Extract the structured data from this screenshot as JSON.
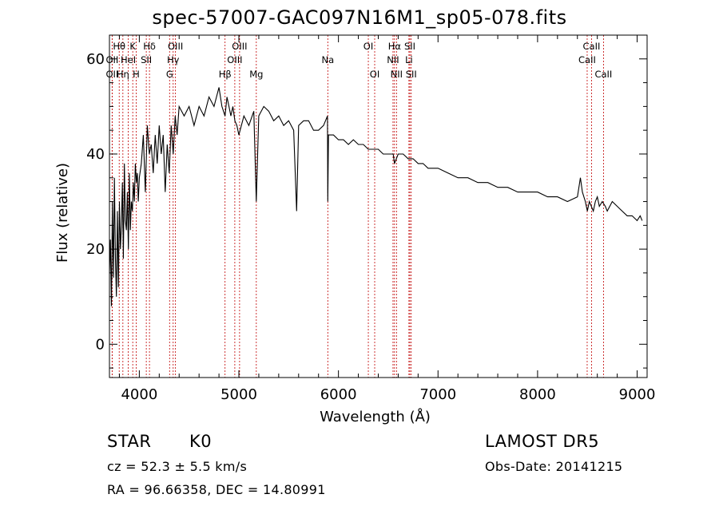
{
  "chart_data": {
    "type": "line",
    "title": "spec-57007-GAC097N16M1_sp05-078.fits",
    "xlabel": "Wavelength (Å)",
    "ylabel": "Flux (relative)",
    "xlim": [
      3700,
      9100
    ],
    "ylim": [
      -7,
      65
    ],
    "xticks": [
      4000,
      5000,
      6000,
      7000,
      8000,
      9000
    ],
    "yticks": [
      0,
      20,
      40,
      60
    ],
    "grid": false,
    "series": [
      {
        "x": [
          3700,
          3710,
          3720,
          3730,
          3740,
          3750,
          3760,
          3770,
          3780,
          3790,
          3800,
          3810,
          3820,
          3830,
          3840,
          3850,
          3860,
          3870,
          3880,
          3890,
          3900,
          3910,
          3920,
          3930,
          3940,
          3950,
          3960,
          3970,
          3980,
          3990,
          4000,
          4020,
          4040,
          4060,
          4080,
          4100,
          4120,
          4140,
          4160,
          4180,
          4200,
          4220,
          4240,
          4260,
          4280,
          4300,
          4320,
          4340,
          4360,
          4380,
          4400,
          4450,
          4500,
          4550,
          4600,
          4650,
          4700,
          4750,
          4800,
          4830,
          4861,
          4880,
          4900,
          4920,
          4940,
          4960,
          4980,
          5000,
          5050,
          5100,
          5150,
          5175,
          5183,
          5200,
          5250,
          5300,
          5350,
          5400,
          5450,
          5500,
          5550,
          5580,
          5600,
          5650,
          5700,
          5750,
          5800,
          5850,
          5890,
          5893,
          5900,
          5950,
          6000,
          6050,
          6100,
          6150,
          6200,
          6250,
          6300,
          6350,
          6400,
          6450,
          6500,
          6550,
          6563,
          6600,
          6650,
          6700,
          6750,
          6800,
          6850,
          6900,
          6950,
          7000,
          7100,
          7200,
          7300,
          7400,
          7500,
          7600,
          7700,
          7800,
          7900,
          8000,
          8100,
          8200,
          8300,
          8400,
          8430,
          8450,
          8480,
          8500,
          8520,
          8540,
          8560,
          8580,
          8600,
          8620,
          8650,
          8680,
          8700,
          8750,
          8800,
          8850,
          8900,
          8950,
          9000,
          9030,
          9050
        ],
        "values": [
          15,
          22,
          8,
          30,
          14,
          35,
          18,
          10,
          28,
          12,
          30,
          20,
          25,
          34,
          18,
          38,
          26,
          24,
          32,
          20,
          36,
          24,
          30,
          28,
          34,
          30,
          38,
          34,
          36,
          30,
          35,
          38,
          44,
          32,
          46,
          40,
          42,
          36,
          44,
          38,
          46,
          40,
          44,
          32,
          42,
          36,
          46,
          40,
          48,
          44,
          50,
          48,
          50,
          46,
          50,
          48,
          52,
          50,
          54,
          50,
          48,
          52,
          50,
          48,
          50,
          47,
          46,
          44,
          48,
          46,
          49,
          30,
          36,
          48,
          50,
          49,
          47,
          48,
          46,
          47,
          45,
          28,
          46,
          47,
          47,
          45,
          45,
          46,
          48,
          30,
          44,
          44,
          43,
          43,
          42,
          43,
          42,
          42,
          41,
          41,
          41,
          40,
          40,
          40,
          38,
          40,
          40,
          39,
          39,
          38,
          38,
          37,
          37,
          37,
          36,
          35,
          35,
          34,
          34,
          33,
          33,
          32,
          32,
          32,
          31,
          31,
          30,
          31,
          35,
          32,
          30,
          28,
          30,
          29,
          28,
          30,
          31,
          29,
          30,
          29,
          28,
          30,
          29,
          28,
          27,
          27,
          26,
          27,
          26
        ]
      }
    ],
    "spectral_lines": [
      {
        "label": "Hθ",
        "x": 3798,
        "row": 1
      },
      {
        "label": "K",
        "x": 3934,
        "row": 1
      },
      {
        "label": "Hδ",
        "x": 4102,
        "row": 1
      },
      {
        "label": "OIII",
        "x": 4363,
        "row": 1
      },
      {
        "label": "OIII",
        "x": 5007,
        "row": 1
      },
      {
        "label": "OI",
        "x": 6300,
        "row": 1
      },
      {
        "label": "Hα",
        "x": 6563,
        "row": 1
      },
      {
        "label": "SII",
        "x": 6717,
        "row": 1
      },
      {
        "label": "CaII",
        "x": 8542,
        "row": 1
      },
      {
        "label": "OII",
        "x": 3727,
        "row": 2
      },
      {
        "label": "HeI",
        "x": 3889,
        "row": 2
      },
      {
        "label": "SII",
        "x": 4070,
        "row": 2
      },
      {
        "label": "Hγ",
        "x": 4340,
        "row": 2
      },
      {
        "label": "OIII",
        "x": 4959,
        "row": 2
      },
      {
        "label": "Na",
        "x": 5893,
        "row": 2
      },
      {
        "label": "NII",
        "x": 6548,
        "row": 2
      },
      {
        "label": "Li",
        "x": 6708,
        "row": 2
      },
      {
        "label": "CaII",
        "x": 8498,
        "row": 2
      },
      {
        "label": "OII",
        "x": 3727,
        "row": 3
      },
      {
        "label": "Hη",
        "x": 3835,
        "row": 3
      },
      {
        "label": "H",
        "x": 3968,
        "row": 3
      },
      {
        "label": "G",
        "x": 4304,
        "row": 3
      },
      {
        "label": "Hβ",
        "x": 4861,
        "row": 3
      },
      {
        "label": "Mg",
        "x": 5175,
        "row": 3
      },
      {
        "label": "OI",
        "x": 6364,
        "row": 3
      },
      {
        "label": "NII",
        "x": 6583,
        "row": 3
      },
      {
        "label": "SII",
        "x": 6731,
        "row": 3
      },
      {
        "label": "CaII",
        "x": 8662,
        "row": 3
      }
    ]
  },
  "info": {
    "class_label": "STAR",
    "subclass": "K0",
    "survey": "LAMOST DR5",
    "cz": "cz = 52.3 ± 5.5 km/s",
    "obs_date": "Obs-Date: 20141215",
    "coords": "RA =  96.66358, DEC =  14.80991"
  },
  "colors": {
    "spectrum": "#000000",
    "line_marker": "#c00000",
    "axis": "#000000"
  }
}
